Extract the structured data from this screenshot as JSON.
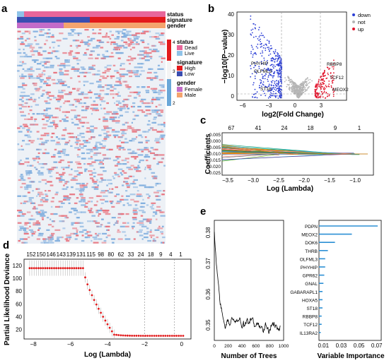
{
  "panels": {
    "a": "a",
    "b": "b",
    "c": "c",
    "d": "d",
    "e": "e"
  },
  "colors": {
    "dead": "#e8669a",
    "live": "#8fc3e8",
    "high": "#e31a1c",
    "low": "#3a4db0",
    "female": "#c36cc9",
    "male": "#f4a46e",
    "down": "#2c3fd6",
    "not": "#b5b5b5",
    "up": "#e2132b",
    "lasso_point": "#e31a1c",
    "rf_bar": "#2b8fd4",
    "highlight_gene": "#e31a1c"
  },
  "chart_data": [
    {
      "panel": "a",
      "type": "heatmap",
      "annotation_tracks": [
        "status",
        "signature",
        "gender"
      ],
      "legend": {
        "scale_ticks": [
          "4",
          "3",
          "2"
        ],
        "groups": [
          {
            "title": "status",
            "items": [
              "Dead",
              "Live"
            ]
          },
          {
            "title": "signature",
            "items": [
              "High",
              "Low"
            ]
          },
          {
            "title": "gender",
            "items": [
              "Female",
              "Male"
            ]
          }
        ]
      }
    },
    {
      "panel": "b",
      "type": "scatter",
      "xlabel": "log2(Fold Change)",
      "ylabel": "−log10(P−value)",
      "xlim": [
        -7,
        5.5
      ],
      "ylim": [
        -1,
        42
      ],
      "xticks": [
        "−6",
        "−3",
        "0",
        "3"
      ],
      "yticks": [
        "0",
        "10",
        "20",
        "30",
        "40"
      ],
      "legend": [
        "down",
        "not",
        "up"
      ],
      "labels_down": [
        "PHYHIP",
        "OLFML3",
        "ST18"
      ],
      "labels_up": [
        "RBBP8",
        "TCF12",
        "MEOX2"
      ]
    },
    {
      "panel": "c",
      "type": "line",
      "xlabel": "Log (Lambda)",
      "ylabel": "Coefficients",
      "xticks": [
        "−3.5",
        "−3.0",
        "−2.5",
        "−2.0",
        "−1.5",
        "−1.0"
      ],
      "yticks": [
        "0.005",
        "0.000",
        "−0.005",
        "−0.010",
        "−0.015",
        "−0.020",
        "−0.025"
      ],
      "top_ticks": [
        "67",
        "41",
        "24",
        "18",
        "9",
        "1"
      ]
    },
    {
      "panel": "d",
      "type": "scatter",
      "xlabel": "Log (Lambda)",
      "ylabel": "Partial Likelihood Deviance",
      "xticks": [
        "−8",
        "−6",
        "−4",
        "−2",
        "0"
      ],
      "yticks": [
        "20",
        "40",
        "60",
        "80",
        "100",
        "120"
      ],
      "top_ticks": [
        "152",
        "150",
        "146",
        "143",
        "139",
        "131",
        "115",
        "98",
        "80",
        "62",
        "33",
        "24",
        "18",
        "9",
        "4",
        "1"
      ],
      "xlim": [
        -8.5,
        0.5
      ],
      "ylim": [
        5,
        130
      ],
      "curve": {
        "plateau": 116,
        "floor": 10,
        "drop_start": -5.3,
        "drop_end": -3.6
      },
      "vlines": [
        -2,
        -0.4
      ]
    },
    {
      "panel": "e_left",
      "type": "line",
      "xlabel": "Number of Trees",
      "xticks": [
        "0",
        "200",
        "400",
        "600",
        "800",
        "1000"
      ],
      "yticks": [
        "0.35",
        "0.36",
        "0.37",
        "0.38"
      ],
      "ylim": [
        0.345,
        0.384
      ]
    },
    {
      "panel": "e_right",
      "type": "bar",
      "xlabel": "Variable Importance",
      "xticks": [
        "0.01",
        "0.03",
        "0.05",
        "0.07"
      ],
      "categories": [
        "PDPN",
        "MEOX2",
        "DOK6",
        "THRB",
        "OLFML3",
        "PHYHIP",
        "GPR62",
        "GNAL",
        "GABARAPL1",
        "HOXA5",
        "ST18",
        "RBBP8",
        "TCF12",
        "IL13RA2"
      ],
      "values": [
        0.071,
        0.042,
        0.023,
        0.015,
        0.012,
        0.012,
        0.011,
        0.01,
        0.009,
        0.009,
        0.009,
        0.008,
        0.008,
        0.007
      ],
      "highlighted": [
        "MEOX2",
        "THRB",
        "PHYHIP",
        "ST18",
        "RBBP8",
        "TCF12"
      ]
    }
  ]
}
